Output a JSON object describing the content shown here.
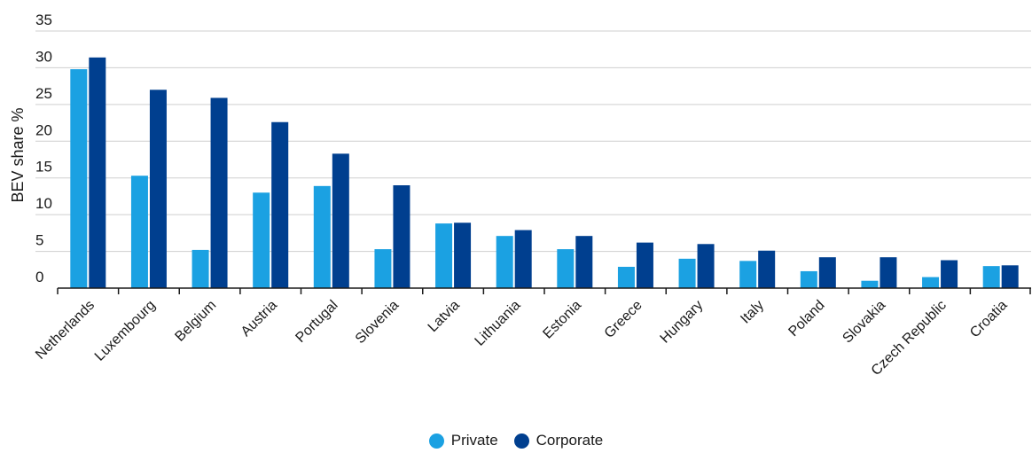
{
  "chart_data": {
    "type": "bar",
    "title": "",
    "xlabel": "",
    "ylabel": "BEV share %",
    "ylim": [
      0,
      35
    ],
    "yticks": [
      0,
      5,
      10,
      15,
      20,
      25,
      30,
      35
    ],
    "grid": true,
    "legend_position": "bottom",
    "categories": [
      "Netherlands",
      "Luxembourg",
      "Belgium",
      "Austria",
      "Portugal",
      "Slovenia",
      "Latvia",
      "Lithuania",
      "Estonia",
      "Greece",
      "Hungary",
      "Italy",
      "Poland",
      "Slovakia",
      "Czech Republic",
      "Croatia"
    ],
    "series": [
      {
        "name": "Private",
        "color": "#1ba1e2",
        "values": [
          29.8,
          15.3,
          5.2,
          13.0,
          13.9,
          5.3,
          8.8,
          7.1,
          5.3,
          2.9,
          4.0,
          3.7,
          2.3,
          1.0,
          1.5,
          3.0
        ]
      },
      {
        "name": "Corporate",
        "color": "#003f8f",
        "values": [
          31.4,
          27.0,
          25.9,
          22.6,
          18.3,
          14.0,
          8.9,
          7.9,
          7.1,
          6.2,
          6.0,
          5.1,
          4.2,
          4.2,
          3.8,
          3.1
        ]
      }
    ]
  }
}
